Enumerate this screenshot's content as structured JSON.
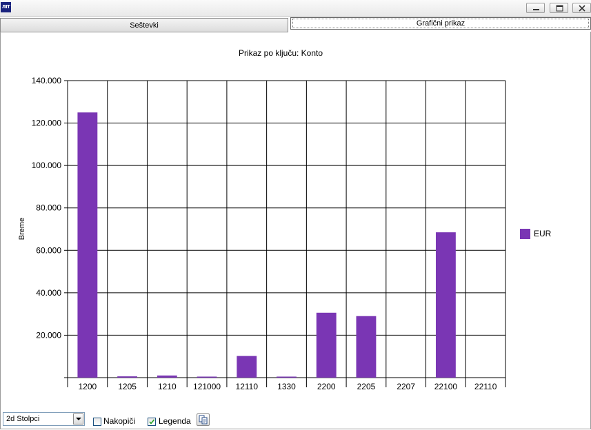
{
  "window": {
    "logo_text": "ЛIT"
  },
  "tabs": [
    {
      "label": "Seštevki",
      "active": false
    },
    {
      "label": "Grafični prikaz",
      "active": true
    }
  ],
  "chart_data": {
    "type": "bar",
    "title": "Prikaz po ključu: Konto",
    "xlabel": "",
    "ylabel": "Breme",
    "categories": [
      "1200",
      "1205",
      "1210",
      "121000",
      "12110",
      "1330",
      "2200",
      "2205",
      "2207",
      "22100",
      "22110"
    ],
    "series": [
      {
        "name": "EUR",
        "color": "#7a36b4",
        "values": [
          125000,
          600,
          1000,
          300,
          10200,
          300,
          30600,
          29000,
          0,
          68500,
          0
        ]
      }
    ],
    "ylim": [
      0,
      140000
    ],
    "yticks": [
      "140.000",
      "120.000",
      "100.000",
      "80.000",
      "60.000",
      "40.000",
      "20.000"
    ],
    "grid": true,
    "legend_position": "right"
  },
  "toolbar": {
    "chart_type_value": "2d Stolpci",
    "stack_label": "Nakopiči",
    "stack_checked": false,
    "legend_label": "Legenda",
    "legend_checked": true,
    "copy_icon": "copy-icon"
  }
}
